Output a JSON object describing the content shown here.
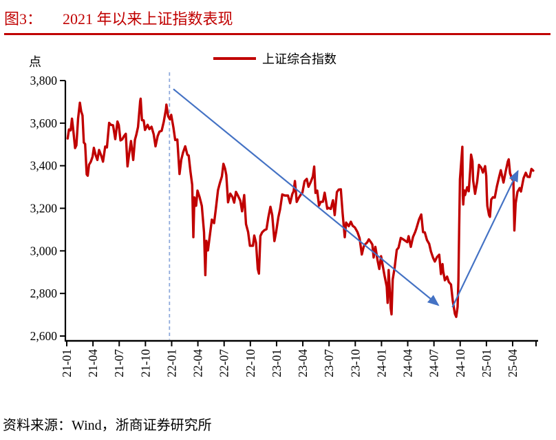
{
  "figure": {
    "label": "图3：",
    "title": "2021 年以来上证指数表现",
    "source": "资料来源：Wind，浙商证券研究所"
  },
  "colors": {
    "title_red": "#C00000",
    "series_red": "#C00000",
    "arrow_blue": "#4472C4",
    "dashed_blue": "#8FAADC",
    "axis_black": "#000000"
  },
  "chart_data": {
    "type": "line",
    "title": "2021 年以来上证指数表现",
    "unit_label": "点",
    "xlabel": "",
    "ylabel": "点",
    "ylim": [
      2600,
      3800
    ],
    "ytick_interval": 200,
    "yticks": [
      2600,
      2800,
      3000,
      3200,
      3400,
      3600,
      3800
    ],
    "xticks": [
      "21-01",
      "21-04",
      "21-07",
      "21-10",
      "22-01",
      "22-04",
      "22-07",
      "22-10",
      "23-01",
      "23-04",
      "23-07",
      "23-10",
      "24-01",
      "24-04",
      "24-07",
      "24-10",
      "25-01",
      "25-04"
    ],
    "xtick_month_index": [
      0,
      3,
      6,
      9,
      12,
      15,
      18,
      21,
      24,
      27,
      30,
      33,
      36,
      39,
      42,
      45,
      48,
      51
    ],
    "x_unit": "months since 2021-01",
    "grid": false,
    "legend_position": "top-center",
    "series": [
      {
        "name": "上证综合指数",
        "color": "#C00000",
        "points": [
          [
            0.1,
            3528
          ],
          [
            0.25,
            3570
          ],
          [
            0.45,
            3566
          ],
          [
            0.6,
            3621
          ],
          [
            0.75,
            3567
          ],
          [
            0.95,
            3483
          ],
          [
            1.1,
            3496
          ],
          [
            1.3,
            3622
          ],
          [
            1.5,
            3696
          ],
          [
            1.65,
            3655
          ],
          [
            1.8,
            3636
          ],
          [
            1.95,
            3509
          ],
          [
            2.1,
            3502
          ],
          [
            2.28,
            3359
          ],
          [
            2.4,
            3353
          ],
          [
            2.55,
            3405
          ],
          [
            2.75,
            3418
          ],
          [
            2.95,
            3442
          ],
          [
            3.1,
            3484
          ],
          [
            3.3,
            3451
          ],
          [
            3.5,
            3427
          ],
          [
            3.7,
            3474
          ],
          [
            3.95,
            3446
          ],
          [
            4.15,
            3419
          ],
          [
            4.4,
            3490
          ],
          [
            4.6,
            3486
          ],
          [
            4.85,
            3601
          ],
          [
            5.05,
            3592
          ],
          [
            5.3,
            3590
          ],
          [
            5.55,
            3525
          ],
          [
            5.8,
            3608
          ],
          [
            5.95,
            3591
          ],
          [
            6.15,
            3519
          ],
          [
            6.35,
            3524
          ],
          [
            6.55,
            3539
          ],
          [
            6.75,
            3550
          ],
          [
            6.95,
            3397
          ],
          [
            7.15,
            3458
          ],
          [
            7.35,
            3516
          ],
          [
            7.6,
            3427
          ],
          [
            7.8,
            3522
          ],
          [
            7.95,
            3544
          ],
          [
            8.15,
            3582
          ],
          [
            8.4,
            3703
          ],
          [
            8.45,
            3715
          ],
          [
            8.6,
            3614
          ],
          [
            8.8,
            3613
          ],
          [
            8.95,
            3568
          ],
          [
            9.25,
            3592
          ],
          [
            9.45,
            3572
          ],
          [
            9.7,
            3583
          ],
          [
            9.95,
            3547
          ],
          [
            10.15,
            3491
          ],
          [
            10.4,
            3539
          ],
          [
            10.6,
            3560
          ],
          [
            10.85,
            3564
          ],
          [
            11.1,
            3607
          ],
          [
            11.35,
            3666
          ],
          [
            11.4,
            3687
          ],
          [
            11.6,
            3632
          ],
          [
            11.8,
            3618
          ],
          [
            11.95,
            3639
          ],
          [
            12.2,
            3580
          ],
          [
            12.4,
            3521
          ],
          [
            12.65,
            3523
          ],
          [
            12.9,
            3361
          ],
          [
            13.1,
            3428
          ],
          [
            13.3,
            3462
          ],
          [
            13.55,
            3491
          ],
          [
            13.8,
            3451
          ],
          [
            13.95,
            3448
          ],
          [
            14.15,
            3372
          ],
          [
            14.35,
            3310
          ],
          [
            14.48,
            3064
          ],
          [
            14.6,
            3251
          ],
          [
            14.8,
            3212
          ],
          [
            14.95,
            3283
          ],
          [
            15.2,
            3252
          ],
          [
            15.45,
            3211
          ],
          [
            15.7,
            3087
          ],
          [
            15.85,
            2886
          ],
          [
            15.97,
            3047
          ],
          [
            16.15,
            3002
          ],
          [
            16.4,
            3084
          ],
          [
            16.6,
            3147
          ],
          [
            16.85,
            3130
          ],
          [
            17.05,
            3195
          ],
          [
            17.3,
            3285
          ],
          [
            17.5,
            3317
          ],
          [
            17.75,
            3350
          ],
          [
            17.92,
            3409
          ],
          [
            18.1,
            3387
          ],
          [
            18.25,
            3356
          ],
          [
            18.45,
            3228
          ],
          [
            18.7,
            3269
          ],
          [
            18.95,
            3253
          ],
          [
            19.15,
            3227
          ],
          [
            19.35,
            3277
          ],
          [
            19.6,
            3258
          ],
          [
            19.85,
            3236
          ],
          [
            20.05,
            3186
          ],
          [
            20.3,
            3262
          ],
          [
            20.5,
            3126
          ],
          [
            20.75,
            3088
          ],
          [
            20.95,
            3024
          ],
          [
            21.3,
            3024
          ],
          [
            21.45,
            3072
          ],
          [
            21.65,
            3038
          ],
          [
            21.85,
            2915
          ],
          [
            21.98,
            2893
          ],
          [
            22.15,
            3070
          ],
          [
            22.35,
            3087
          ],
          [
            22.6,
            3097
          ],
          [
            22.85,
            3102
          ],
          [
            23.05,
            3156
          ],
          [
            23.3,
            3207
          ],
          [
            23.5,
            3168
          ],
          [
            23.75,
            3046
          ],
          [
            23.95,
            3089
          ],
          [
            24.2,
            3158
          ],
          [
            24.4,
            3195
          ],
          [
            24.65,
            3265
          ],
          [
            24.95,
            3260
          ],
          [
            25.3,
            3260
          ],
          [
            25.55,
            3224
          ],
          [
            25.8,
            3267
          ],
          [
            25.95,
            3280
          ],
          [
            26.1,
            3328
          ],
          [
            26.3,
            3230
          ],
          [
            26.55,
            3250
          ],
          [
            26.8,
            3266
          ],
          [
            26.95,
            3273
          ],
          [
            27.2,
            3327
          ],
          [
            27.45,
            3338
          ],
          [
            27.65,
            3301
          ],
          [
            27.9,
            3323
          ],
          [
            28.15,
            3350
          ],
          [
            28.3,
            3396
          ],
          [
            28.45,
            3272
          ],
          [
            28.65,
            3283
          ],
          [
            28.85,
            3213
          ],
          [
            29.05,
            3230
          ],
          [
            29.3,
            3231
          ],
          [
            29.5,
            3273
          ],
          [
            29.8,
            3198
          ],
          [
            29.95,
            3202
          ],
          [
            30.2,
            3197
          ],
          [
            30.45,
            3238
          ],
          [
            30.65,
            3168
          ],
          [
            30.9,
            3276
          ],
          [
            31.1,
            3288
          ],
          [
            31.35,
            3289
          ],
          [
            31.55,
            3177
          ],
          [
            31.8,
            3064
          ],
          [
            31.95,
            3133
          ],
          [
            32.25,
            3116
          ],
          [
            32.5,
            3137
          ],
          [
            32.7,
            3118
          ],
          [
            32.95,
            3110
          ],
          [
            33.25,
            3088
          ],
          [
            33.5,
            3059
          ],
          [
            33.75,
            2983
          ],
          [
            33.95,
            3019
          ],
          [
            34.1,
            3030
          ],
          [
            34.35,
            3039
          ],
          [
            34.55,
            3054
          ],
          [
            34.8,
            3040
          ],
          [
            34.95,
            3030
          ],
          [
            35.1,
            2969
          ],
          [
            35.3,
            3019
          ],
          [
            35.55,
            2955
          ],
          [
            35.75,
            2915
          ],
          [
            35.95,
            2975
          ],
          [
            36.15,
            2929
          ],
          [
            36.35,
            2882
          ],
          [
            36.6,
            2832
          ],
          [
            36.7,
            2756
          ],
          [
            36.82,
            2910
          ],
          [
            36.98,
            2789
          ],
          [
            37.05,
            2730
          ],
          [
            37.15,
            2702
          ],
          [
            37.28,
            2866
          ],
          [
            37.5,
            2921
          ],
          [
            37.75,
            3005
          ],
          [
            37.95,
            3015
          ],
          [
            38.2,
            3061
          ],
          [
            38.45,
            3055
          ],
          [
            38.7,
            3048
          ],
          [
            38.95,
            3041
          ],
          [
            39.1,
            3069
          ],
          [
            39.35,
            3019
          ],
          [
            39.6,
            3065
          ],
          [
            39.85,
            3088
          ],
          [
            39.98,
            3104
          ],
          [
            40.3,
            3148
          ],
          [
            40.55,
            3171
          ],
          [
            40.75,
            3088
          ],
          [
            40.95,
            3087
          ],
          [
            41.2,
            3051
          ],
          [
            41.45,
            3033
          ],
          [
            41.65,
            2998
          ],
          [
            41.9,
            2967
          ],
          [
            42.1,
            2950
          ],
          [
            42.35,
            2971
          ],
          [
            42.6,
            2982
          ],
          [
            42.8,
            2891
          ],
          [
            42.98,
            2938
          ],
          [
            43.05,
            2905
          ],
          [
            43.25,
            2862
          ],
          [
            43.5,
            2879
          ],
          [
            43.7,
            2854
          ],
          [
            43.95,
            2842
          ],
          [
            44.15,
            2765
          ],
          [
            44.4,
            2704
          ],
          [
            44.55,
            2690
          ],
          [
            44.7,
            2737
          ],
          [
            44.8,
            2863
          ],
          [
            44.88,
            3088
          ],
          [
            44.97,
            3336
          ],
          [
            45.25,
            3489
          ],
          [
            45.3,
            3258
          ],
          [
            45.35,
            3218
          ],
          [
            45.45,
            3284
          ],
          [
            45.55,
            3262
          ],
          [
            45.8,
            3299
          ],
          [
            45.98,
            3280
          ],
          [
            46.15,
            3383
          ],
          [
            46.25,
            3452
          ],
          [
            46.4,
            3421
          ],
          [
            46.48,
            3331
          ],
          [
            46.7,
            3268
          ],
          [
            46.95,
            3326
          ],
          [
            47.15,
            3404
          ],
          [
            47.4,
            3391
          ],
          [
            47.6,
            3368
          ],
          [
            47.85,
            3398
          ],
          [
            47.98,
            3352
          ],
          [
            48.05,
            3262
          ],
          [
            48.1,
            3211
          ],
          [
            48.3,
            3168
          ],
          [
            48.4,
            3160
          ],
          [
            48.55,
            3241
          ],
          [
            48.75,
            3252
          ],
          [
            48.95,
            3250
          ],
          [
            49.2,
            3303
          ],
          [
            49.45,
            3347
          ],
          [
            49.65,
            3379
          ],
          [
            49.95,
            3321
          ],
          [
            50.2,
            3372
          ],
          [
            50.45,
            3420
          ],
          [
            50.55,
            3430
          ],
          [
            50.7,
            3365
          ],
          [
            50.95,
            3336
          ],
          [
            51.08,
            3342
          ],
          [
            51.2,
            3096
          ],
          [
            51.35,
            3224
          ],
          [
            51.55,
            3277
          ],
          [
            51.8,
            3295
          ],
          [
            51.95,
            3279
          ],
          [
            52.25,
            3342
          ],
          [
            52.5,
            3367
          ],
          [
            52.7,
            3348
          ],
          [
            52.95,
            3347
          ],
          [
            53.15,
            3385
          ],
          [
            53.35,
            3377
          ]
        ]
      }
    ],
    "annotations": {
      "dashed_vline": {
        "t": 11.75,
        "color": "#8FAADC"
      },
      "arrows": [
        {
          "name": "downtrend-arrow",
          "from": [
            12.2,
            3760
          ],
          "to": [
            42.5,
            2745
          ],
          "color": "#4472C4"
        },
        {
          "name": "uptrend-arrow",
          "from": [
            44.1,
            2735
          ],
          "to": [
            51.6,
            3375
          ],
          "color": "#4472C4"
        }
      ]
    }
  }
}
